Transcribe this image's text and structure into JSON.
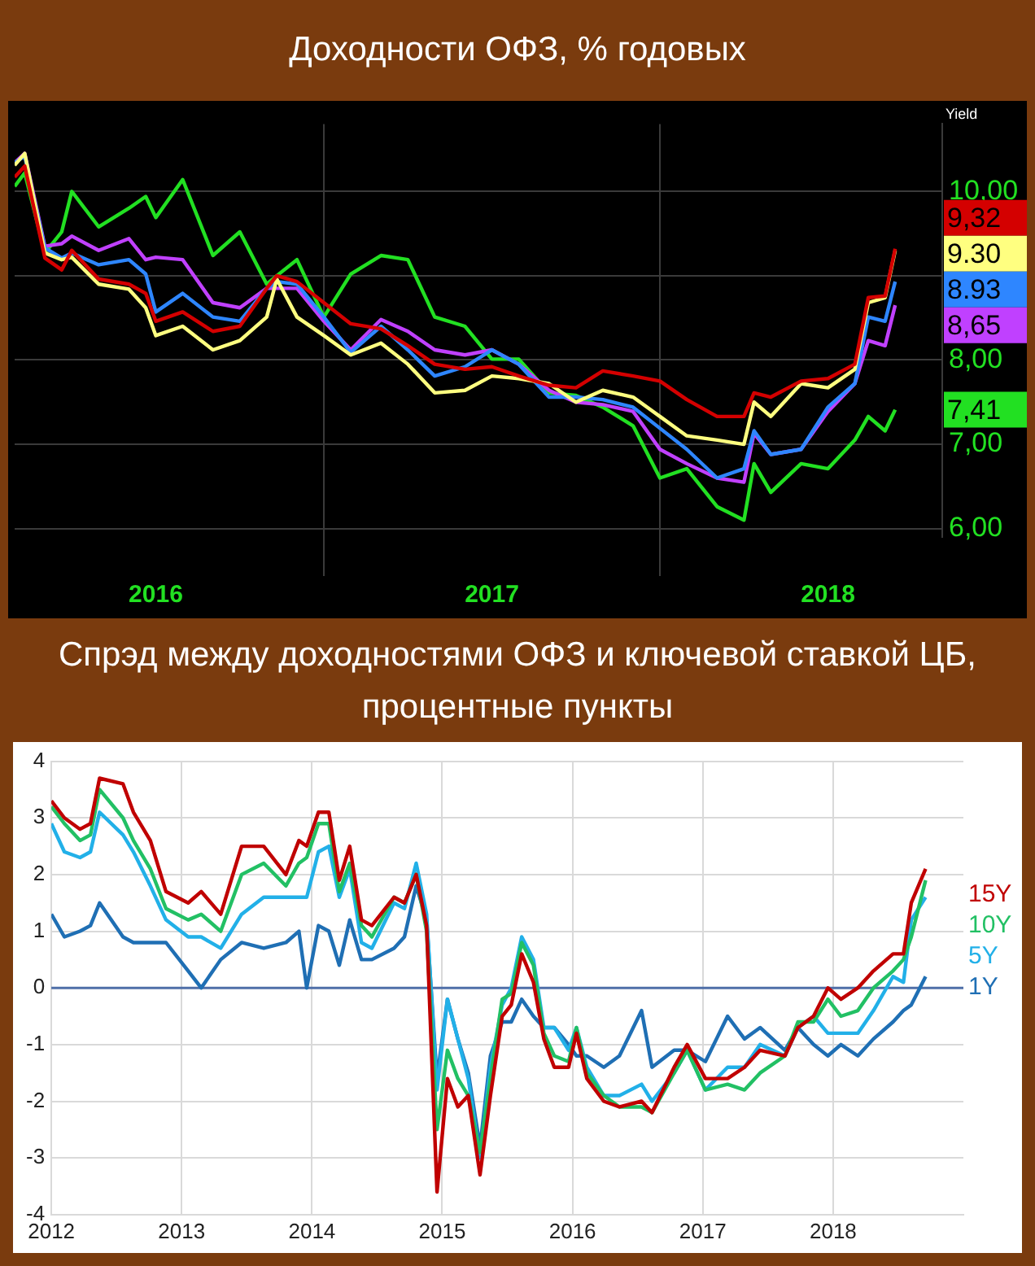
{
  "chart_data": [
    {
      "type": "line",
      "title": "Доходности ОФЗ, % годовых",
      "ylabel": "Yield",
      "x": [
        2016.08,
        2016.11,
        2016.17,
        2016.22,
        2016.25,
        2016.33,
        2016.42,
        2016.47,
        2016.5,
        2016.58,
        2016.67,
        2016.75,
        2016.83,
        2016.86,
        2016.92,
        2017.0,
        2017.08,
        2017.17,
        2017.25,
        2017.33,
        2017.42,
        2017.5,
        2017.58,
        2017.67,
        2017.75,
        2017.83,
        2017.92,
        2018.0,
        2018.08,
        2018.17,
        2018.25,
        2018.28,
        2018.33,
        2018.42,
        2018.5,
        2018.58,
        2018.62,
        2018.67,
        2018.7
      ],
      "xlim": [
        2016.08,
        2018.84
      ],
      "xticks": [
        {
          "value": 2016.5,
          "label": "2016"
        },
        {
          "value": 2017,
          "label": null
        },
        {
          "value": 2017.5,
          "label": "2017"
        },
        {
          "value": 2018,
          "label": null
        },
        {
          "value": 2018.5,
          "label": "2018"
        }
      ],
      "ylim": [
        5.9,
        10.8
      ],
      "yticks": [
        {
          "value": 6,
          "label": "6,00"
        },
        {
          "value": 7,
          "label": "7,00"
        },
        {
          "value": 8,
          "label": "8,00"
        },
        {
          "value": 9,
          "label": null
        },
        {
          "value": 10,
          "label": "10,00"
        }
      ],
      "grid": true,
      "marker": "none",
      "line_style": "solid",
      "series": [
        {
          "color": "#d40000",
          "values": [
            10.17,
            10.3,
            9.21,
            9.07,
            9.3,
            8.96,
            8.9,
            8.79,
            8.46,
            8.57,
            8.34,
            8.4,
            8.85,
            9.0,
            8.93,
            8.68,
            8.43,
            8.37,
            8.17,
            7.95,
            7.89,
            7.92,
            7.81,
            7.7,
            7.67,
            7.87,
            7.81,
            7.75,
            7.53,
            7.33,
            7.33,
            7.61,
            7.56,
            7.75,
            7.78,
            7.95,
            8.74,
            8.76,
            9.32
          ],
          "value_labels": [
            null,
            null,
            null,
            null,
            null,
            null,
            null,
            null,
            null,
            null,
            null,
            null,
            null,
            null,
            null,
            null,
            null,
            null,
            null,
            null,
            null,
            null,
            null,
            null,
            null,
            null,
            null,
            null,
            null,
            null,
            null,
            null,
            null,
            null,
            null,
            null,
            null,
            null,
            "9,32"
          ]
        },
        {
          "color": "#ffff80",
          "values": [
            10.31,
            10.45,
            9.27,
            9.19,
            9.22,
            8.9,
            8.84,
            8.62,
            8.29,
            8.4,
            8.12,
            8.23,
            8.51,
            8.96,
            8.51,
            8.29,
            8.06,
            8.2,
            7.95,
            7.61,
            7.64,
            7.81,
            7.78,
            7.72,
            7.5,
            7.64,
            7.56,
            7.33,
            7.1,
            7.05,
            7.0,
            7.5,
            7.33,
            7.72,
            7.67,
            7.89,
            8.68,
            8.74,
            9.3
          ],
          "value_labels": [
            null,
            null,
            null,
            null,
            null,
            null,
            null,
            null,
            null,
            null,
            null,
            null,
            null,
            null,
            null,
            null,
            null,
            null,
            null,
            null,
            null,
            null,
            null,
            null,
            null,
            null,
            null,
            null,
            null,
            null,
            null,
            null,
            null,
            null,
            null,
            null,
            null,
            null,
            "9.30"
          ]
        },
        {
          "color": "#2e86ff",
          "values": [
            10.34,
            10.42,
            9.33,
            9.21,
            9.27,
            9.13,
            9.19,
            9.02,
            8.57,
            8.79,
            8.51,
            8.46,
            8.85,
            8.93,
            8.9,
            8.51,
            8.09,
            8.4,
            8.12,
            7.81,
            7.92,
            8.12,
            7.95,
            7.56,
            7.56,
            7.53,
            7.44,
            7.19,
            6.94,
            6.6,
            6.71,
            7.16,
            6.88,
            6.94,
            7.44,
            7.72,
            8.51,
            8.46,
            8.93
          ],
          "value_labels": [
            null,
            null,
            null,
            null,
            null,
            null,
            null,
            null,
            null,
            null,
            null,
            null,
            null,
            null,
            null,
            null,
            null,
            null,
            null,
            null,
            null,
            null,
            null,
            null,
            null,
            null,
            null,
            null,
            null,
            null,
            null,
            null,
            null,
            null,
            null,
            null,
            null,
            null,
            "8.93"
          ]
        },
        {
          "color": "#c040ff",
          "values": [
            10.34,
            10.45,
            9.35,
            9.38,
            9.47,
            9.3,
            9.44,
            9.19,
            9.22,
            9.19,
            8.68,
            8.62,
            8.85,
            8.85,
            8.85,
            8.46,
            8.12,
            8.48,
            8.34,
            8.12,
            8.06,
            8.12,
            7.95,
            7.64,
            7.5,
            7.47,
            7.39,
            6.94,
            6.77,
            6.6,
            6.55,
            7.13,
            6.88,
            6.94,
            7.39,
            7.72,
            8.23,
            8.17,
            8.65
          ],
          "value_labels": [
            null,
            null,
            null,
            null,
            null,
            null,
            null,
            null,
            null,
            null,
            null,
            null,
            null,
            null,
            null,
            null,
            null,
            null,
            null,
            null,
            null,
            null,
            null,
            null,
            null,
            null,
            null,
            null,
            null,
            null,
            null,
            null,
            null,
            null,
            null,
            null,
            null,
            null,
            "8,65"
          ]
        },
        {
          "color": "#22e022",
          "values": [
            10.06,
            10.22,
            9.27,
            9.52,
            10.0,
            9.58,
            9.8,
            9.94,
            9.69,
            10.14,
            9.24,
            9.52,
            8.9,
            9.0,
            9.19,
            8.51,
            9.02,
            9.24,
            9.19,
            8.51,
            8.4,
            8.01,
            8.01,
            7.61,
            7.58,
            7.44,
            7.22,
            6.6,
            6.71,
            6.26,
            6.1,
            6.77,
            6.43,
            6.77,
            6.71,
            7.05,
            7.33,
            7.16,
            7.41
          ],
          "value_labels": [
            null,
            null,
            null,
            null,
            null,
            null,
            null,
            null,
            null,
            null,
            null,
            null,
            null,
            null,
            null,
            null,
            null,
            null,
            null,
            null,
            null,
            null,
            null,
            null,
            null,
            null,
            null,
            null,
            null,
            null,
            null,
            null,
            null,
            null,
            null,
            null,
            null,
            null,
            "7,41"
          ]
        }
      ]
    },
    {
      "type": "line",
      "title": "Спрэд между доходностями ОФЗ и ключевой ставкой ЦБ, процентные пункты",
      "x": [
        2012.0,
        2012.1,
        2012.22,
        2012.3,
        2012.37,
        2012.55,
        2012.63,
        2012.76,
        2012.88,
        2013.05,
        2013.15,
        2013.3,
        2013.46,
        2013.63,
        2013.8,
        2013.9,
        2013.96,
        2014.05,
        2014.13,
        2014.21,
        2014.29,
        2014.38,
        2014.46,
        2014.63,
        2014.71,
        2014.8,
        2014.88,
        2014.96,
        2015.04,
        2015.12,
        2015.2,
        2015.29,
        2015.37,
        2015.46,
        2015.53,
        2015.61,
        2015.7,
        2015.78,
        2015.86,
        2015.97,
        2016.03,
        2016.11,
        2016.24,
        2016.36,
        2016.53,
        2016.61,
        2016.78,
        2016.88,
        2017.02,
        2017.19,
        2017.32,
        2017.44,
        2017.63,
        2017.73,
        2017.85,
        2017.96,
        2018.06,
        2018.19,
        2018.31,
        2018.46,
        2018.54,
        2018.6,
        2018.71
      ],
      "xlim": [
        2012,
        2019
      ],
      "xticks": [
        2012,
        2013,
        2014,
        2015,
        2016,
        2017,
        2018
      ],
      "ylim": [
        -4,
        4
      ],
      "yticks": [
        -4,
        -3,
        -2,
        -1,
        0,
        1,
        2,
        3,
        4
      ],
      "grid": true,
      "legend": "right",
      "marker": "none",
      "line_style": "solid",
      "ref_lines": [
        {
          "axis": "y",
          "value": 0,
          "color": "#4f6fa8"
        }
      ],
      "series": [
        {
          "name": "15Y",
          "color": "#c00000",
          "values": [
            3.3,
            3.0,
            2.8,
            2.9,
            3.7,
            3.6,
            3.1,
            2.6,
            1.7,
            1.5,
            1.7,
            1.3,
            2.5,
            2.5,
            2.0,
            2.6,
            2.5,
            3.1,
            3.1,
            1.9,
            2.5,
            1.2,
            1.1,
            1.6,
            1.5,
            2.0,
            1.1,
            -3.6,
            -1.6,
            -2.1,
            -1.9,
            -3.3,
            -1.9,
            -0.5,
            -0.3,
            0.6,
            0.1,
            -0.9,
            -1.4,
            -1.4,
            -0.8,
            -1.6,
            -2.0,
            -2.1,
            -2.0,
            -2.2,
            -1.4,
            -1.0,
            -1.6,
            -1.6,
            -1.4,
            -1.1,
            -1.2,
            -0.7,
            -0.5,
            0.0,
            -0.2,
            0.0,
            0.3,
            0.6,
            0.6,
            1.5,
            2.1
          ]
        },
        {
          "name": "10Y",
          "color": "#22c064",
          "values": [
            3.2,
            2.9,
            2.6,
            2.7,
            3.5,
            3.0,
            2.6,
            2.1,
            1.4,
            1.2,
            1.3,
            1.0,
            2.0,
            2.2,
            1.8,
            2.2,
            2.3,
            2.9,
            2.9,
            1.7,
            2.2,
            1.1,
            0.9,
            1.6,
            1.5,
            2.0,
            1.0,
            -2.5,
            -1.1,
            -1.6,
            -1.9,
            -2.9,
            -1.6,
            -0.2,
            -0.1,
            0.8,
            0.4,
            -0.8,
            -1.2,
            -1.3,
            -0.7,
            -1.5,
            -1.9,
            -2.1,
            -2.1,
            -2.2,
            -1.5,
            -1.1,
            -1.8,
            -1.7,
            -1.8,
            -1.5,
            -1.2,
            -0.6,
            -0.6,
            -0.2,
            -0.5,
            -0.4,
            0.0,
            0.3,
            0.5,
            0.9,
            1.9
          ]
        },
        {
          "name": "5Y",
          "color": "#22b0e8",
          "values": [
            2.9,
            2.4,
            2.3,
            2.4,
            3.1,
            2.7,
            2.4,
            1.8,
            1.2,
            0.9,
            0.9,
            0.7,
            1.3,
            1.6,
            1.6,
            1.6,
            1.6,
            2.4,
            2.5,
            1.6,
            2.1,
            0.8,
            0.7,
            1.5,
            1.4,
            2.2,
            1.3,
            -1.8,
            -0.2,
            -0.9,
            -1.6,
            -3.0,
            -1.4,
            -0.3,
            0.0,
            0.9,
            0.5,
            -0.7,
            -0.7,
            -1.1,
            -0.7,
            -1.4,
            -1.9,
            -1.9,
            -1.7,
            -2.0,
            -1.5,
            -1.1,
            -1.8,
            -1.4,
            -1.4,
            -1.0,
            -1.2,
            -0.7,
            -0.5,
            -0.8,
            -0.8,
            -0.8,
            -0.4,
            0.2,
            0.1,
            1.2,
            1.6
          ]
        },
        {
          "name": "1Y",
          "color": "#1f6fb4",
          "values": [
            1.3,
            0.9,
            1.0,
            1.1,
            1.5,
            0.9,
            0.8,
            0.8,
            0.8,
            0.3,
            0.0,
            0.5,
            0.8,
            0.7,
            0.8,
            1.0,
            0.0,
            1.1,
            1.0,
            0.4,
            1.2,
            0.5,
            0.5,
            0.7,
            0.9,
            1.8,
            1.2,
            -1.6,
            -0.2,
            -0.9,
            -1.5,
            -2.8,
            -1.2,
            -0.6,
            -0.6,
            -0.2,
            -0.5,
            -0.7,
            -0.7,
            -1.0,
            -1.2,
            -1.2,
            -1.4,
            -1.2,
            -0.4,
            -1.4,
            -1.1,
            -1.1,
            -1.3,
            -0.5,
            -0.9,
            -0.7,
            -1.1,
            -0.7,
            -1.0,
            -1.2,
            -1.0,
            -1.2,
            -0.9,
            -0.6,
            -0.4,
            -0.3,
            0.2
          ]
        }
      ]
    }
  ]
}
